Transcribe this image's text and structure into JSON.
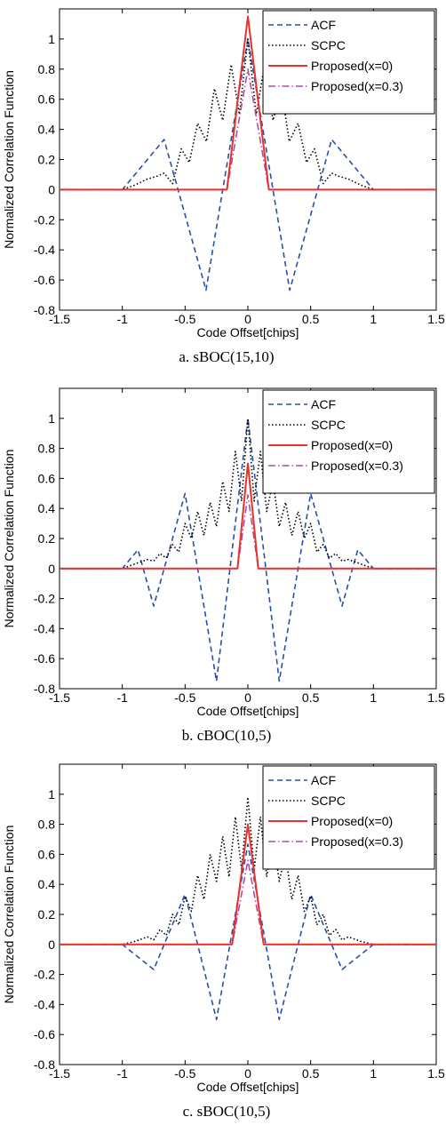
{
  "chart_data": [
    {
      "type": "line",
      "caption": "a. sBOC(15,10)",
      "xlabel": "Code Offset[chips]",
      "ylabel": "Normalized Correlation Function",
      "xlim": [
        -1.5,
        1.5
      ],
      "ylim": [
        -0.8,
        1.2
      ],
      "xticks": [
        "-1.5",
        "-1",
        "-0.5",
        "0",
        "0.5",
        "1",
        "1.5"
      ],
      "yticks": [
        "-0.8",
        "-0.6",
        "-0.4",
        "-0.2",
        "0",
        "0.2",
        "0.4",
        "0.6",
        "0.8",
        "1"
      ],
      "legend_position": "top-right",
      "series": [
        {
          "name": "ACF",
          "color": "#2b4fa8",
          "style": "dashed",
          "x": [
            -1.5,
            -1,
            -0.667,
            -0.333,
            0,
            0.333,
            0.667,
            1,
            1.5
          ],
          "y": [
            0,
            0,
            0.333,
            -0.667,
            1,
            -0.667,
            0.333,
            0,
            0
          ]
        },
        {
          "name": "SCPC",
          "color": "#000000",
          "style": "dotted",
          "x": [
            -1.5,
            -1,
            -0.9,
            -0.8,
            -0.72,
            -0.667,
            -0.6,
            -0.53,
            -0.467,
            -0.4,
            -0.33,
            -0.267,
            -0.2,
            -0.133,
            -0.067,
            0,
            0.067,
            0.133,
            0.2,
            0.267,
            0.33,
            0.4,
            0.467,
            0.53,
            0.6,
            0.667,
            0.72,
            0.8,
            0.9,
            1,
            1.5
          ],
          "y": [
            0,
            0,
            0.03,
            0.07,
            0.09,
            0.11,
            0.04,
            0.27,
            0.18,
            0.44,
            0.32,
            0.67,
            0.46,
            0.83,
            0.5,
            1,
            0.5,
            0.83,
            0.46,
            0.67,
            0.32,
            0.44,
            0.18,
            0.27,
            0.04,
            0.11,
            0.09,
            0.07,
            0.03,
            0,
            0
          ]
        },
        {
          "name": "Proposed(x=0)",
          "color": "#e8322b",
          "style": "solid",
          "x": [
            -1.5,
            -0.167,
            0,
            0.167,
            1.5
          ],
          "y": [
            0,
            0,
            1.15,
            0,
            0
          ]
        },
        {
          "name": "Proposed(x=0.3)",
          "color": "#b04aa8",
          "style": "dashdot",
          "x": [
            -1.5,
            -0.167,
            0,
            0.167,
            1.5
          ],
          "y": [
            0,
            0,
            0.8,
            0,
            0
          ]
        }
      ]
    },
    {
      "type": "line",
      "caption": "b. cBOC(10,5)",
      "xlabel": "Code Offset[chips]",
      "ylabel": "Normalized Correlation Function",
      "xlim": [
        -1.5,
        1.5
      ],
      "ylim": [
        -0.8,
        1.2
      ],
      "xticks": [
        "-1.5",
        "-1",
        "-0.5",
        "0",
        "0.5",
        "1",
        "1.5"
      ],
      "yticks": [
        "-0.8",
        "-0.6",
        "-0.4",
        "-0.2",
        "0",
        "0.2",
        "0.4",
        "0.6",
        "0.8",
        "1"
      ],
      "legend_position": "top-right",
      "series": [
        {
          "name": "ACF",
          "color": "#2b4fa8",
          "style": "dashed",
          "x": [
            -1.5,
            -1,
            -0.875,
            -0.75,
            -0.5,
            -0.25,
            0,
            0.25,
            0.5,
            0.75,
            0.875,
            1,
            1.5
          ],
          "y": [
            0,
            0,
            0.125,
            -0.25,
            0.5,
            -0.75,
            1,
            -0.75,
            0.5,
            -0.25,
            0.125,
            0,
            0
          ]
        },
        {
          "name": "SCPC",
          "color": "#000000",
          "style": "dotted",
          "x": [
            -1.5,
            -1,
            -0.9,
            -0.8,
            -0.75,
            -0.7,
            -0.65,
            -0.6,
            -0.55,
            -0.5,
            -0.45,
            -0.4,
            -0.35,
            -0.3,
            -0.25,
            -0.2,
            -0.15,
            -0.1,
            -0.05,
            0,
            0.05,
            0.1,
            0.15,
            0.2,
            0.25,
            0.3,
            0.35,
            0.4,
            0.45,
            0.5,
            0.55,
            0.6,
            0.65,
            0.7,
            0.75,
            0.8,
            0.9,
            1,
            1.5
          ],
          "y": [
            0,
            0,
            0.03,
            0.06,
            0.05,
            0.1,
            0.07,
            0.16,
            0.11,
            0.3,
            0.2,
            0.38,
            0.22,
            0.44,
            0.28,
            0.58,
            0.38,
            0.78,
            0.45,
            1,
            0.45,
            0.78,
            0.38,
            0.58,
            0.28,
            0.44,
            0.22,
            0.38,
            0.2,
            0.3,
            0.11,
            0.16,
            0.07,
            0.1,
            0.05,
            0.06,
            0.03,
            0,
            0
          ]
        },
        {
          "name": "Proposed(x=0)",
          "color": "#e8322b",
          "style": "solid",
          "x": [
            -1.5,
            -0.083,
            0,
            0.083,
            1.5
          ],
          "y": [
            0,
            0,
            0.7,
            0,
            0
          ]
        },
        {
          "name": "Proposed(x=0.3)",
          "color": "#b04aa8",
          "style": "dashdot",
          "x": [
            -1.5,
            -0.083,
            0,
            0.083,
            1.5
          ],
          "y": [
            0,
            0,
            0.49,
            0,
            0
          ]
        }
      ]
    },
    {
      "type": "line",
      "caption": "c. sBOC(10,5)",
      "xlabel": "Code Offset[chips]",
      "ylabel": "Normalized Correlation Function",
      "xlim": [
        -1.5,
        1.5
      ],
      "ylim": [
        -0.8,
        1.2
      ],
      "xticks": [
        "-1.5",
        "-1",
        "-0.5",
        "0",
        "0.5",
        "1",
        "1.5"
      ],
      "yticks": [
        "-0.8",
        "-0.6",
        "-0.4",
        "-0.2",
        "0",
        "0.2",
        "0.4",
        "0.6",
        "0.8",
        "1"
      ],
      "legend_position": "top-right",
      "series": [
        {
          "name": "ACF",
          "color": "#2b4fa8",
          "style": "dashed",
          "x": [
            -1.5,
            -1,
            -0.75,
            -0.5,
            -0.25,
            0,
            0.25,
            0.5,
            0.75,
            1,
            1.5
          ],
          "y": [
            0,
            0,
            -0.167,
            0.333,
            -0.5,
            0.667,
            -0.5,
            0.333,
            -0.167,
            0,
            0
          ]
        },
        {
          "name": "SCPC",
          "color": "#000000",
          "style": "dotted",
          "x": [
            -1.5,
            -1,
            -0.9,
            -0.8,
            -0.75,
            -0.7,
            -0.65,
            -0.6,
            -0.55,
            -0.5,
            -0.45,
            -0.4,
            -0.35,
            -0.3,
            -0.25,
            -0.2,
            -0.15,
            -0.1,
            -0.05,
            0,
            0.05,
            0.1,
            0.15,
            0.2,
            0.25,
            0.3,
            0.35,
            0.4,
            0.45,
            0.5,
            0.55,
            0.6,
            0.65,
            0.7,
            0.75,
            0.8,
            0.9,
            1,
            1.5
          ],
          "y": [
            0,
            0,
            0.02,
            0.05,
            0.03,
            0.1,
            0.06,
            0.2,
            0.13,
            0.32,
            0.22,
            0.46,
            0.3,
            0.6,
            0.42,
            0.72,
            0.45,
            0.85,
            0.5,
            0.98,
            0.5,
            0.85,
            0.45,
            0.72,
            0.42,
            0.6,
            0.3,
            0.46,
            0.22,
            0.32,
            0.13,
            0.2,
            0.06,
            0.1,
            0.03,
            0.05,
            0.02,
            0,
            0
          ]
        },
        {
          "name": "Proposed(x=0)",
          "color": "#e8322b",
          "style": "solid",
          "x": [
            -1.5,
            -0.125,
            0,
            0.125,
            1.5
          ],
          "y": [
            0,
            0,
            0.8,
            0,
            0
          ]
        },
        {
          "name": "Proposed(x=0.3)",
          "color": "#b04aa8",
          "style": "dashdot",
          "x": [
            -1.5,
            -0.125,
            0,
            0.125,
            1.5
          ],
          "y": [
            0,
            0,
            0.56,
            0,
            0
          ]
        }
      ]
    }
  ]
}
